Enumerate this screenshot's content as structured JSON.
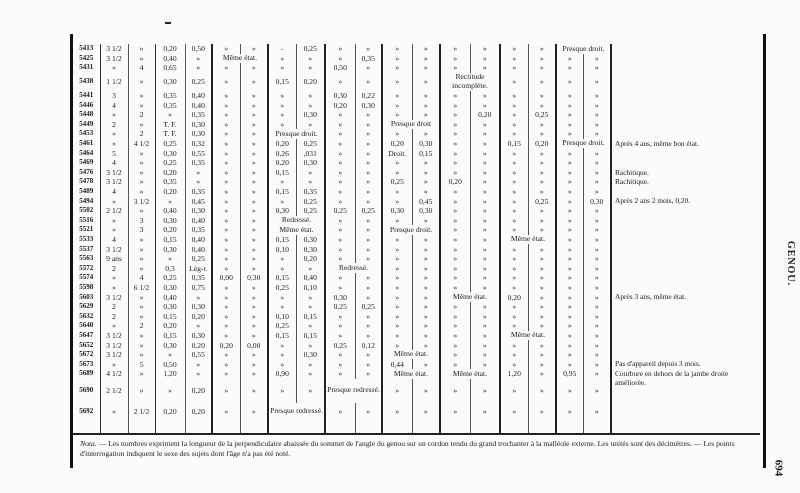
{
  "side_title": "GENOU.",
  "page_number": "694",
  "table": {
    "rows": [
      {
        "id": "5413",
        "cells": [
          "3 1/2",
          "»",
          "0,20",
          "0,50",
          "»",
          "»",
          "-",
          "0,25",
          "»",
          "»",
          "»",
          "»",
          "»",
          "»",
          "»",
          "»",
          {
            "text": "Presque droit.",
            "span": 2
          }
        ],
        "note": ""
      },
      {
        "id": "5425",
        "cells": [
          "3 1/2",
          "»",
          "0,40",
          "»",
          {
            "text": "Même état.",
            "span": 2
          },
          "»",
          "»",
          "»",
          "0,35",
          "»",
          "»",
          "»",
          "»",
          "»",
          "»",
          "»",
          "»"
        ],
        "note": ""
      },
      {
        "id": "5431",
        "cells": [
          "»",
          "4",
          "0,65",
          "»",
          "»",
          "»",
          "»",
          "»",
          "0,50",
          "»",
          "»",
          "»",
          "»",
          "»",
          "»",
          "»",
          "»",
          "»"
        ],
        "note": ""
      },
      {
        "id": "5438",
        "cells": [
          "1 1/2",
          "»",
          "0,30",
          "0,25",
          "»",
          "»",
          "0,15",
          "0,20",
          "»",
          "»",
          "»",
          "»",
          {
            "text": "Rectitude incomplète.",
            "span": 2
          },
          "»",
          "»",
          "»",
          "»"
        ],
        "note": ""
      },
      {
        "id": "5441",
        "cells": [
          "3",
          "»",
          "0,35",
          "0,40",
          "»",
          "»",
          "»",
          "»",
          "0,30",
          "0,22",
          "»",
          "»",
          "»",
          "»",
          "»",
          "»",
          "»",
          "»"
        ],
        "note": ""
      },
      {
        "id": "5446",
        "cells": [
          "4",
          "»",
          "0,35",
          "0,40",
          "»",
          "»",
          "»",
          "»",
          "0,20",
          "0,30",
          "»",
          "»",
          "»",
          "»",
          "»",
          "»",
          "»",
          "»"
        ],
        "note": ""
      },
      {
        "id": "5448",
        "cells": [
          "»",
          "2",
          "»",
          "0,35",
          "»",
          "»",
          "»",
          "0,30",
          "»",
          "»",
          "»",
          "»",
          "»",
          "0,20",
          "»",
          "0,25",
          "»",
          "»"
        ],
        "note": ""
      },
      {
        "id": "5449",
        "cells": [
          "2",
          "»",
          "T. F.",
          "0,30",
          "»",
          "»",
          "»",
          "»",
          "«",
          "»",
          {
            "text": "Presque droit",
            "span": 2
          },
          "»",
          "»",
          "»",
          "»",
          "»",
          "»"
        ],
        "note": ""
      },
      {
        "id": "5453",
        "cells": [
          "»",
          "2",
          "T. F.",
          "0,30",
          "»",
          "»",
          {
            "text": "Presque droit.",
            "span": 2
          },
          "»",
          "»",
          "»",
          "»",
          "»",
          "»",
          "»",
          "»",
          "»",
          "»"
        ],
        "note": ""
      },
      {
        "id": "5461",
        "cells": [
          "»",
          "4 1/2",
          "0,25",
          "0,32",
          "»",
          "»",
          "0,20",
          "0,25",
          "»",
          "»",
          "0,20",
          "0,30",
          "»",
          "»",
          "0,15",
          "0,20",
          {
            "text": "Presque droit.",
            "span": 2
          }
        ],
        "note": "Après 4 ans, même bon état."
      },
      {
        "id": "5464",
        "cells": [
          "5",
          "»",
          "0,30",
          "0,55",
          "»",
          "»",
          "0,26",
          ",031",
          "»",
          "»",
          "Droit.",
          "0,15",
          "»",
          "»",
          "»",
          "»",
          "»",
          "»"
        ],
        "note": ""
      },
      {
        "id": "5469",
        "cells": [
          "4",
          "»",
          "0,25",
          "0,35",
          "»",
          "»",
          "0,20",
          "0,30",
          "»",
          "»",
          "»",
          "»",
          "»",
          "»",
          "»",
          "»",
          "»",
          "»"
        ],
        "note": ""
      },
      {
        "id": "5476",
        "cells": [
          "3 1/2",
          "»",
          "0,20",
          "»",
          "»",
          "»",
          "0,15",
          "»",
          "»",
          "»",
          "»",
          "»",
          "»",
          "»",
          "»",
          "»",
          "»",
          "»"
        ],
        "note": "Rachitique."
      },
      {
        "id": "5478",
        "cells": [
          "3 1/2",
          "»",
          "0,35",
          "»",
          "»",
          "»",
          "»",
          "»",
          "»",
          "»",
          "0,25",
          "»",
          "0,20",
          "»",
          "»",
          "»",
          "»",
          "»"
        ],
        "note": "Rachitique."
      },
      {
        "id": "5489",
        "cells": [
          "4",
          "»",
          "0,20",
          "0,35",
          "»",
          "»",
          "0,15",
          "0,35",
          "»",
          "»",
          "»",
          "»",
          "»",
          "»",
          "»",
          "»",
          "»",
          "»"
        ],
        "note": ""
      },
      {
        "id": "5494",
        "cells": [
          "»",
          "3 1/2",
          "»",
          "0,45",
          "»",
          "»",
          "»",
          "0,25",
          "»",
          "»",
          "»",
          "0,45",
          "»",
          "»",
          "»",
          "0,25",
          "»",
          "0,30"
        ],
        "note": "Après 2 ans 2 mois, 0,20."
      },
      {
        "id": "5502",
        "cells": [
          "2 1/2",
          "»",
          "0,40",
          "0,30",
          "»",
          "»",
          "0,30",
          "0,25",
          "0,25",
          "0,25",
          "0,30",
          "0,30",
          "»",
          "»",
          "»",
          "»",
          "»",
          "»"
        ],
        "note": ""
      },
      {
        "id": "5516",
        "cells": [
          "»",
          "3",
          "0,30",
          "0,40",
          "»",
          "»",
          {
            "text": "Redressé.",
            "span": 2
          },
          "»",
          "»",
          "»",
          "»",
          "»",
          "»",
          "»",
          "»",
          "»",
          "»"
        ],
        "note": ""
      },
      {
        "id": "5521",
        "cells": [
          "»",
          "3",
          "0,20",
          "0,35",
          "»",
          "»",
          {
            "text": "Même état.",
            "span": 2
          },
          "»",
          "»",
          {
            "text": "Presque droit.",
            "span": 2
          },
          "»",
          "»",
          "»",
          "»",
          "»",
          "»"
        ],
        "note": ""
      },
      {
        "id": "5533",
        "cells": [
          "4",
          "»",
          "0,15",
          "0,40",
          "»",
          "»",
          "0,15",
          "0,30",
          "»",
          "»",
          "»",
          "»",
          "»",
          "»",
          {
            "text": "Même état.",
            "span": 2
          },
          "»",
          "»"
        ],
        "note": ""
      },
      {
        "id": "5537",
        "cells": [
          "3 1/2",
          "»",
          "0,30",
          "0,40",
          "»",
          "»",
          "0,10",
          "0,30",
          "»",
          "»",
          "»",
          "»",
          "»",
          "»",
          "»",
          "»",
          "»",
          "»"
        ],
        "note": ""
      },
      {
        "id": "5563",
        "cells": [
          "9 ans",
          "»",
          "»",
          "0,25",
          "»",
          "»",
          "»",
          "0,20",
          "»",
          "»",
          "»",
          "»",
          "»",
          "»",
          "»",
          "»",
          "»",
          "»"
        ],
        "note": ""
      },
      {
        "id": "5572",
        "cells": [
          "2",
          "»",
          "0,3",
          "Lég-r.",
          "»",
          "»",
          "»",
          "»",
          {
            "text": "Redressé.",
            "span": 2
          },
          "»",
          "»",
          "»",
          "»",
          "»",
          "»",
          "»",
          "»"
        ],
        "note": ""
      },
      {
        "id": "5574",
        "cells": [
          "»",
          "4",
          "0,25",
          "0,35",
          "0,00",
          "0,30",
          "0,15",
          "0,40",
          "»",
          "»",
          "»",
          "»",
          "»",
          "»",
          "»",
          "»",
          "»",
          "»"
        ],
        "note": ""
      },
      {
        "id": "5598",
        "cells": [
          "»",
          "6 1/2",
          "0,30",
          "0,75",
          "»",
          "»",
          "0,25",
          "0,10",
          "»",
          "»",
          "»",
          "»",
          "»",
          "»",
          "»",
          "»",
          "»",
          "»"
        ],
        "note": ""
      },
      {
        "id": "5603",
        "cells": [
          "3 1/2",
          "»",
          "0,40",
          "»",
          "»",
          "»",
          "»",
          "»",
          "0,30",
          "»",
          "»",
          "»",
          {
            "text": "Même état.",
            "span": 2
          },
          "0,20",
          "»",
          "»",
          "»"
        ],
        "note": "Après 3 ans, même état."
      },
      {
        "id": "5629",
        "cells": [
          "2",
          "»",
          "0,30",
          "0,30",
          "»",
          "»",
          "»",
          "»",
          "0,25",
          "0,25",
          "»",
          "»",
          "»",
          "»",
          "»",
          "»",
          "»",
          "»"
        ],
        "note": ""
      },
      {
        "id": "5632",
        "cells": [
          "2",
          "»",
          "0,15",
          "0,20",
          "»",
          "»",
          "0,10",
          "0,15",
          "»",
          "»",
          "»",
          "»",
          "»",
          "»",
          "»",
          "»",
          "»",
          "»"
        ],
        "note": ""
      },
      {
        "id": "5640",
        "cells": [
          "»",
          "2",
          "0,20",
          "»",
          "»",
          "»",
          "0,25",
          "»",
          "»",
          "»",
          "»",
          "»",
          "»",
          "»",
          "»",
          "»",
          "»",
          "»"
        ],
        "note": ""
      },
      {
        "id": "5647",
        "cells": [
          "3 1/2",
          "»",
          "0,15",
          "0,30",
          "»",
          "»",
          "0,15",
          "0,15",
          "»",
          "»",
          "»",
          "»",
          "»",
          "»",
          {
            "text": "Même état.",
            "span": 2
          },
          "»",
          "»"
        ],
        "note": ""
      },
      {
        "id": "5652",
        "cells": [
          "3 1/2",
          "»",
          "0,30",
          "0,20",
          "0,20",
          "0,00",
          "»",
          "»",
          "0,25",
          "0,12",
          "»",
          "»",
          "»",
          "»",
          "»",
          "»",
          "»",
          "»"
        ],
        "note": ""
      },
      {
        "id": "5672",
        "cells": [
          "3 1/2",
          "»",
          "»",
          "0,55",
          "»",
          "»",
          "»",
          "0,30",
          "»",
          "»",
          {
            "text": "Même état.",
            "span": 2
          },
          "»",
          "»",
          "»",
          "»",
          "»",
          "»"
        ],
        "note": ""
      },
      {
        "id": "5673",
        "cells": [
          "»",
          "5",
          "0,50",
          "»",
          "»",
          "»",
          "»",
          "»",
          "»",
          "»",
          "0,44",
          "»",
          "»",
          "»",
          "»",
          "»",
          "»",
          "»"
        ],
        "note": "Pas d'appareil depuis 3 mois."
      },
      {
        "id": "5689",
        "cells": [
          "4 1/2",
          "»",
          "1,20",
          "»",
          "»",
          "»",
          "0,90",
          "»",
          "»",
          "»",
          {
            "text": "Même état.",
            "span": 2
          },
          {
            "text": "Même état.",
            "span": 2
          },
          "1,20",
          "»",
          "0,95",
          "»"
        ],
        "note": "Courbure en dehors de la jambe droite améliorée."
      },
      {
        "id": "5690",
        "cells": [
          "2 1/2",
          "»",
          "»",
          "0,20",
          "»",
          "»",
          "»",
          "»",
          {
            "text": "Presque redressé.",
            "span": 2
          },
          "»",
          "»",
          "»",
          "»",
          "»",
          "»",
          "»",
          "»"
        ],
        "note": ""
      },
      {
        "id": "5692",
        "cells": [
          "»",
          "2 1/2",
          "0,20",
          "0,20",
          "»",
          "»",
          {
            "text": "Presque redressé.",
            "span": 2
          },
          "»",
          "»",
          "»",
          "»",
          "»",
          "»",
          "»",
          "»",
          "»",
          "»"
        ],
        "note": ""
      }
    ]
  },
  "nota": {
    "label": "Nota.",
    "text": " — Les nombres expriment la longueur de la perpendiculaire abaissée du sommet de l'angle du genou sur un cordon tendu du grand trochanter à la malléole externe. Les unités sont des décimètres. — Les points d'interrogation indiquent le sexe des sujets dont l'âge n'a pas été noté."
  }
}
